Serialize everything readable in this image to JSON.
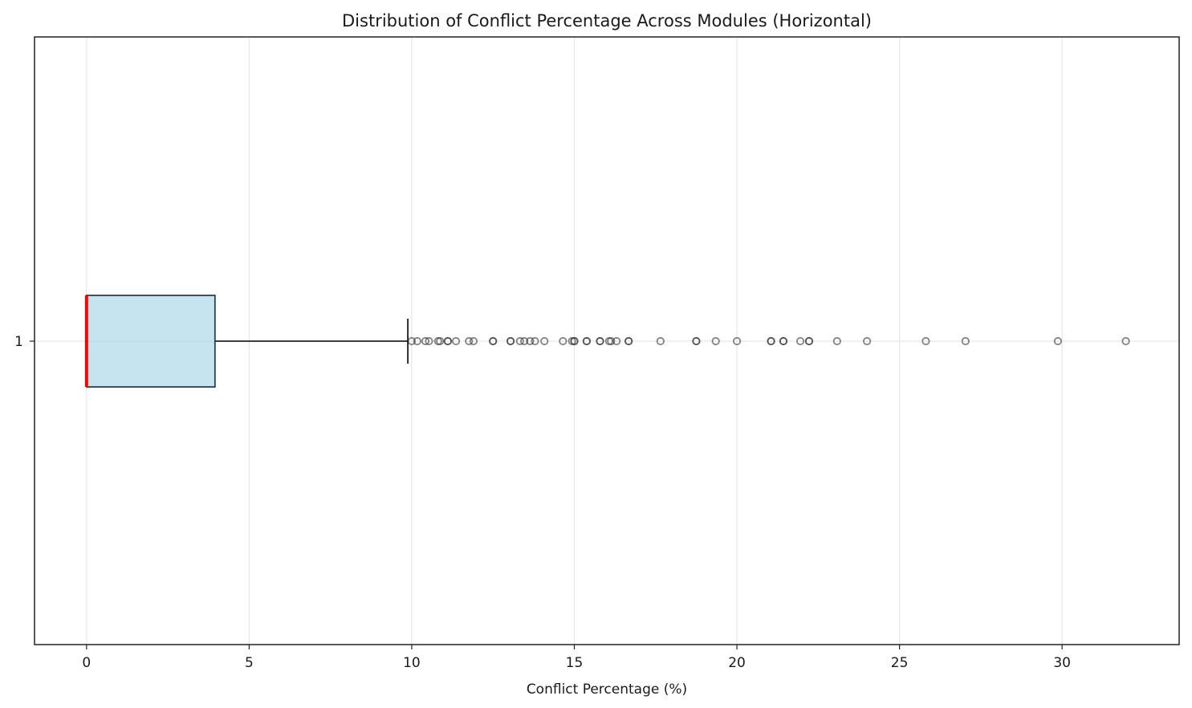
{
  "chart_data": {
    "type": "boxplot",
    "orientation": "horizontal",
    "title": "Distribution of Conflict Percentage Across Modules (Horizontal)",
    "xlabel": "Conflict Percentage (%)",
    "ylabel": "",
    "xlim": [
      -1.6,
      33.6
    ],
    "xticks": [
      0,
      5,
      10,
      15,
      20,
      25,
      30
    ],
    "xtick_labels": [
      "0",
      "5",
      "10",
      "15",
      "20",
      "25",
      "30"
    ],
    "categories": [
      "1"
    ],
    "grid": true,
    "box": {
      "whisker_low": 0,
      "q1": 0,
      "median": 0,
      "q3": 3.95,
      "whisker_high": 9.88
    },
    "outliers": [
      10.0,
      10.17,
      10.42,
      10.53,
      10.81,
      10.87,
      11.11,
      11.11,
      11.36,
      11.76,
      11.9,
      12.5,
      12.5,
      13.04,
      13.04,
      13.33,
      13.46,
      13.64,
      13.79,
      14.08,
      14.65,
      14.93,
      15.0,
      15.0,
      15.38,
      15.38,
      15.79,
      15.79,
      16.07,
      16.13,
      16.3,
      16.67,
      16.67,
      17.65,
      18.75,
      18.75,
      19.35,
      20.0,
      21.05,
      21.05,
      21.43,
      21.43,
      21.95,
      22.22,
      22.22,
      23.08,
      24.0,
      25.81,
      27.03,
      29.87,
      31.96
    ],
    "colors": {
      "box_fill": "#add8e6",
      "box_edge": "#2f3f4f",
      "median": "#ff0000",
      "whisker": "#000000",
      "outlier_edge": "#333333",
      "grid": "#e6e6e6"
    }
  }
}
